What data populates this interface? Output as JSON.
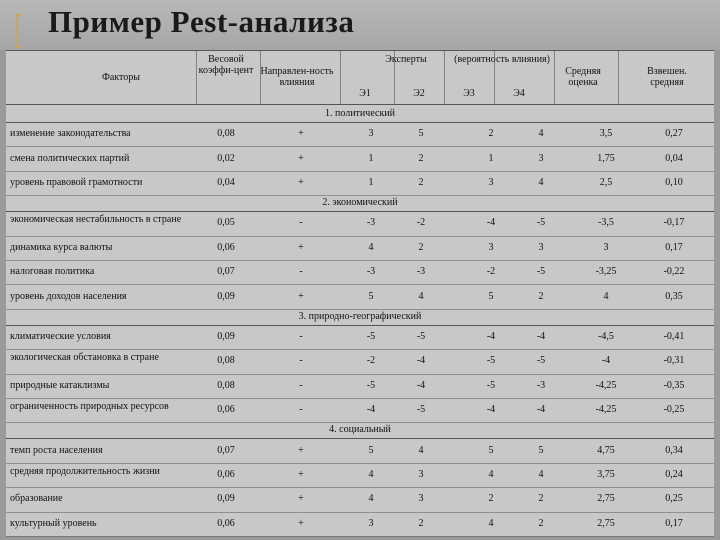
{
  "title": "Пример Pest-анализа",
  "header": {
    "factors": "Факторы",
    "weight": "Весовой коэффи-цент",
    "direction": "Направлен-ность влияния",
    "experts": "Эксперты",
    "probability": "(вероятность влияния)",
    "e1": "Э1",
    "e2": "Э2",
    "e3": "Э3",
    "e4": "Э4",
    "avg": "Средняя оценка",
    "weighted": "Взвешен. средняя"
  },
  "sections": [
    {
      "title": "1. политический",
      "rows": [
        {
          "factor": "изменение законодательства",
          "w": "0,08",
          "d": "+",
          "e": [
            "3",
            "5",
            "2",
            "4"
          ],
          "avg": "3,5",
          "wa": "0,27"
        },
        {
          "factor": "смена политических партий",
          "w": "0,02",
          "d": "+",
          "e": [
            "1",
            "2",
            "1",
            "3"
          ],
          "avg": "1,75",
          "wa": "0,04"
        },
        {
          "factor": "уровень правовой грамотности",
          "w": "0,04",
          "d": "+",
          "e": [
            "1",
            "2",
            "3",
            "4"
          ],
          "avg": "2,5",
          "wa": "0,10"
        }
      ]
    },
    {
      "title": "2. экономический",
      "rows": [
        {
          "factor": "экономическая нестабильность в стране",
          "w": "0,05",
          "d": "-",
          "e": [
            "-3",
            "-2",
            "-4",
            "-5"
          ],
          "avg": "-3,5",
          "wa": "-0,17"
        },
        {
          "factor": "динамика курса валюты",
          "w": "0,06",
          "d": "+",
          "e": [
            "4",
            "2",
            "3",
            "3"
          ],
          "avg": "3",
          "wa": "0,17"
        },
        {
          "factor": "налоговая политика",
          "w": "0,07",
          "d": "-",
          "e": [
            "-3",
            "-3",
            "-2",
            "-5"
          ],
          "avg": "-3,25",
          "wa": "-0,22"
        },
        {
          "factor": "уровень доходов населения",
          "w": "0,09",
          "d": "+",
          "e": [
            "5",
            "4",
            "5",
            "2"
          ],
          "avg": "4",
          "wa": "0,35"
        }
      ]
    },
    {
      "title": "3. природно-географический",
      "rows": [
        {
          "factor": "климатические условия",
          "w": "0,09",
          "d": "-",
          "e": [
            "-5",
            "-5",
            "-4",
            "-4"
          ],
          "avg": "-4,5",
          "wa": "-0,41"
        },
        {
          "factor": "экологическая обстановка в стране",
          "w": "0,08",
          "d": "-",
          "e": [
            "-2",
            "-4",
            "-5",
            "-5"
          ],
          "avg": "-4",
          "wa": "-0,31"
        },
        {
          "factor": "природные катаклизмы",
          "w": "0,08",
          "d": "-",
          "e": [
            "-5",
            "-4",
            "-5",
            "-3"
          ],
          "avg": "-4,25",
          "wa": "-0,35"
        },
        {
          "factor": "ограниченность природных ресурсов",
          "w": "0,06",
          "d": "-",
          "e": [
            "-4",
            "-5",
            "-4",
            "-4"
          ],
          "avg": "-4,25",
          "wa": "-0,25"
        }
      ]
    },
    {
      "title": "4. социальный",
      "rows": [
        {
          "factor": "темп роста населения",
          "w": "0,07",
          "d": "+",
          "e": [
            "5",
            "4",
            "5",
            "5"
          ],
          "avg": "4,75",
          "wa": "0,34"
        },
        {
          "factor": "средняя продолжительность жизни",
          "w": "0,06",
          "d": "+",
          "e": [
            "4",
            "3",
            "4",
            "4"
          ],
          "avg": "3,75",
          "wa": "0,24"
        },
        {
          "factor": "образование",
          "w": "0,09",
          "d": "+",
          "e": [
            "4",
            "3",
            "2",
            "2"
          ],
          "avg": "2,75",
          "wa": "0,25"
        },
        {
          "factor": "культурный уровень",
          "w": "0,06",
          "d": "+",
          "e": [
            "3",
            "2",
            "4",
            "2"
          ],
          "avg": "2,75",
          "wa": "0,17"
        }
      ]
    }
  ]
}
